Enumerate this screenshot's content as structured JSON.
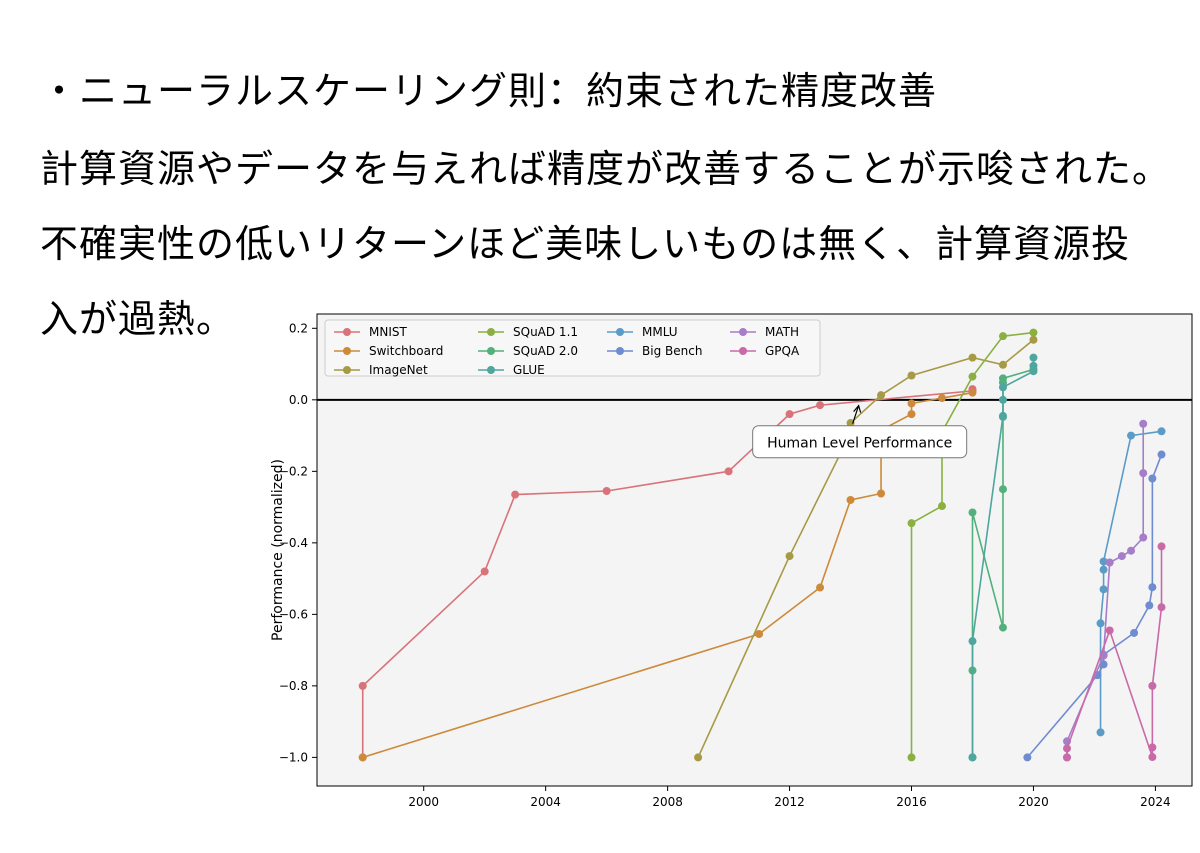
{
  "slide": {
    "heading": "・ニューラルスケーリング則：約束された精度改善",
    "line1": "計算資源やデータを与えれば精度が改善することが示唆された。",
    "line2": "不確実性の低いリターンほど美味しいものは無く、計算資源投",
    "line3": "入が過熱。"
  },
  "chart_data": {
    "type": "line",
    "title": "",
    "xlabel": "",
    "ylabel": "Performance (normalized)",
    "xlim": [
      1996.5,
      2025.2
    ],
    "ylim": [
      -1.08,
      0.24
    ],
    "x_ticks": [
      2000,
      2004,
      2008,
      2012,
      2016,
      2020,
      2024
    ],
    "y_ticks": [
      0.2,
      0.0,
      -0.2,
      -0.4,
      -0.6,
      -0.8,
      -1.0
    ],
    "y_tick_labels": [
      "0.2",
      "0.0",
      "−0.2",
      "−0.4",
      "−0.6",
      "−0.8",
      "−1.0"
    ],
    "grid": false,
    "legend": "top-left",
    "annotation": {
      "text": "Human Level Performance",
      "x": 2014.3,
      "y": -0.12,
      "arrow_to": [
        2014.2,
        -0.005
      ]
    },
    "reference_line": {
      "y": 0.0,
      "color": "#000000"
    },
    "series": [
      {
        "name": "MNIST",
        "color": "#d9737a",
        "x": [
          1998,
          1998,
          2002,
          2003,
          2006,
          2010,
          2012,
          2013,
          2018,
          2018
        ],
        "y": [
          -1.0,
          -0.8,
          -0.48,
          -0.265,
          -0.255,
          -0.2,
          -0.04,
          -0.015,
          0.025,
          0.03
        ]
      },
      {
        "name": "Switchboard",
        "color": "#cc8a3a",
        "x": [
          1998,
          2011,
          2013,
          2014,
          2015,
          2015,
          2016,
          2016,
          2017,
          2018
        ],
        "y": [
          -1.0,
          -0.655,
          -0.525,
          -0.28,
          -0.262,
          -0.085,
          -0.04,
          -0.01,
          0.005,
          0.02
        ]
      },
      {
        "name": "ImageNet",
        "color": "#a69a45",
        "x": [
          2009,
          2012,
          2014,
          2014,
          2015,
          2016,
          2018,
          2019,
          2020
        ],
        "y": [
          -1.0,
          -0.437,
          -0.093,
          -0.065,
          0.013,
          0.068,
          0.118,
          0.098,
          0.168
        ]
      },
      {
        "name": "SQuAD 1.1",
        "color": "#89b040",
        "x": [
          2016,
          2016,
          2017,
          2017,
          2018,
          2019,
          2020
        ],
        "y": [
          -1.0,
          -0.345,
          -0.297,
          -0.09,
          0.065,
          0.178,
          0.188
        ]
      },
      {
        "name": "SQuAD 2.0",
        "color": "#52b07c",
        "x": [
          2018,
          2018,
          2018,
          2019,
          2019,
          2019,
          2019,
          2019,
          2020
        ],
        "y": [
          -1.0,
          -0.757,
          -0.315,
          -0.637,
          -0.25,
          -0.048,
          0.048,
          0.06,
          0.085
        ]
      },
      {
        "name": "GLUE",
        "color": "#4ea69e",
        "x": [
          2018,
          2018,
          2019,
          2019,
          2019,
          2020,
          2020,
          2020
        ],
        "y": [
          -1.0,
          -0.675,
          -0.045,
          0.0,
          0.035,
          0.08,
          0.095,
          0.118
        ]
      },
      {
        "name": "MMLU",
        "color": "#5b9bc8",
        "x": [
          2022.2,
          2022.2,
          2022.3,
          2022.3,
          2022.3,
          2023.2,
          2024.2
        ],
        "y": [
          -0.93,
          -0.625,
          -0.53,
          -0.475,
          -0.452,
          -0.1,
          -0.088
        ]
      },
      {
        "name": "Big Bench",
        "color": "#6f8cd0",
        "x": [
          2019.8,
          2022.1,
          2022.3,
          2022.3,
          2023.3,
          2023.8,
          2023.9,
          2023.9,
          2024.2
        ],
        "y": [
          -1.0,
          -0.77,
          -0.74,
          -0.713,
          -0.652,
          -0.575,
          -0.524,
          -0.22,
          -0.153
        ]
      },
      {
        "name": "MATH",
        "color": "#a67dc8",
        "x": [
          2021.1,
          2021.1,
          2022.3,
          2022.5,
          2022.9,
          2023.2,
          2023.6,
          2023.6,
          2023.6
        ],
        "y": [
          -1.0,
          -0.955,
          -0.715,
          -0.455,
          -0.437,
          -0.422,
          -0.385,
          -0.205,
          -0.067
        ]
      },
      {
        "name": "GPQA",
        "color": "#c96aa8",
        "x": [
          2021.1,
          2021.1,
          2022.5,
          2023.9,
          2023.9,
          2023.9,
          2024.2,
          2024.2
        ],
        "y": [
          -1.0,
          -0.975,
          -0.645,
          -0.999,
          -0.972,
          -0.8,
          -0.58,
          -0.41
        ]
      }
    ]
  }
}
